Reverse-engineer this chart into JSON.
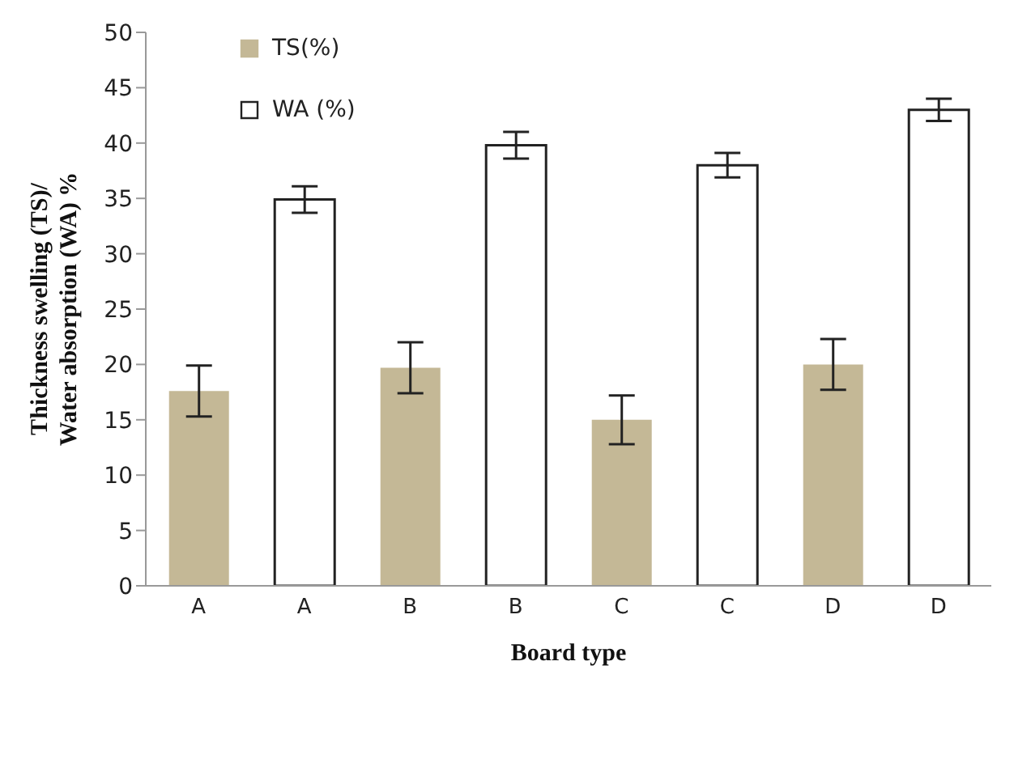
{
  "chart_data": {
    "type": "bar",
    "xlabel": "Board type",
    "ylabel": "Thickness swelling (TS)/\nWater absorption (WA)  %",
    "categories": [
      "A",
      "A",
      "B",
      "B",
      "C",
      "C",
      "D",
      "D"
    ],
    "series": [
      {
        "name": "TS(%)",
        "color": "#c4b896",
        "values": [
          17.6,
          null,
          19.7,
          null,
          15.0,
          null,
          20.0,
          null
        ],
        "errors": [
          2.3,
          null,
          2.3,
          null,
          2.2,
          null,
          2.3,
          null
        ]
      },
      {
        "name": "WA (%)",
        "color": "#ffffff",
        "values": [
          null,
          34.9,
          null,
          39.8,
          null,
          38.0,
          null,
          43.0
        ],
        "errors": [
          null,
          1.2,
          null,
          1.2,
          null,
          1.1,
          null,
          1.0
        ]
      }
    ],
    "ylim": [
      0,
      50
    ],
    "yticks": [
      0,
      5,
      10,
      15,
      20,
      25,
      30,
      35,
      40,
      45,
      50
    ],
    "grid": false,
    "legend": "top left"
  }
}
